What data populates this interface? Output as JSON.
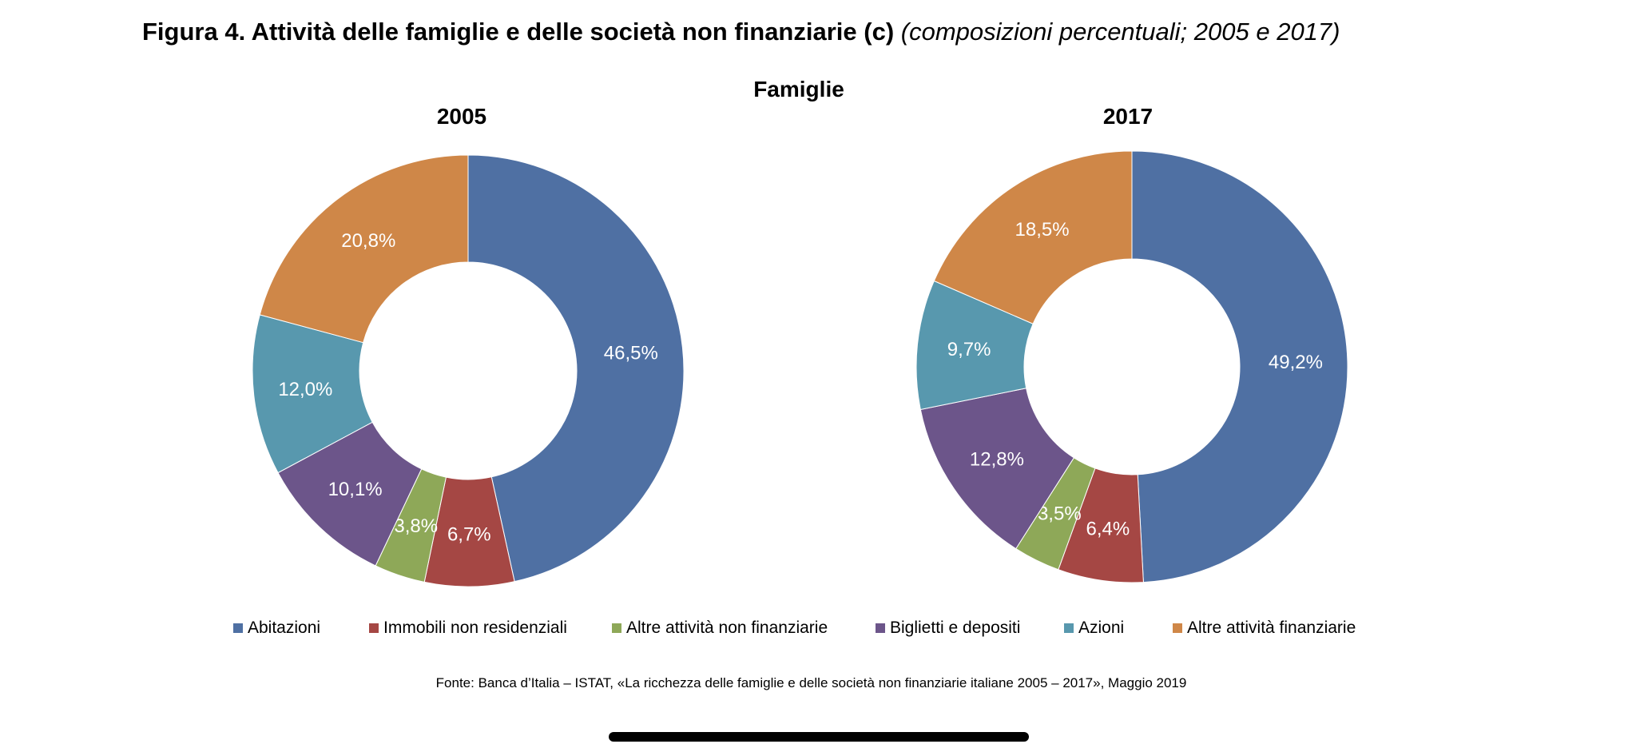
{
  "figure": {
    "title_bold": "Figura 4. Attività delle famiglie e delle società non finanziarie (c)",
    "title_italic": "(composizioni percentuali; 2005 e 2017)",
    "group_title": "Famiglie",
    "source": "Fonte: Banca d’Italia – ISTAT, «La ricchezza delle famiglie e delle società non finanziarie italiane 2005 – 2017», Maggio 2019"
  },
  "legend": [
    {
      "label": "Abitazioni",
      "color": "#4f70a3"
    },
    {
      "label": "Immobili non residenziali",
      "color": "#a54744"
    },
    {
      "label": "Altre attività non finanziarie",
      "color": "#8ea858"
    },
    {
      "label": "Biglietti e depositi",
      "color": "#6c558a"
    },
    {
      "label": "Azioni",
      "color": "#5898ae"
    },
    {
      "label": "Altre attività finanziarie",
      "color": "#cf8748"
    }
  ],
  "chart_data": [
    {
      "type": "pie",
      "title": "2005",
      "categories": [
        "Abitazioni",
        "Immobili non residenziali",
        "Altre attività non finanziarie",
        "Biglietti e depositi",
        "Azioni",
        "Altre attività finanziarie"
      ],
      "values": [
        46.5,
        6.7,
        3.8,
        10.1,
        12.0,
        20.8
      ],
      "labels": [
        "46,5%",
        "6,7%",
        "3,8%",
        "10,1%",
        "12,0%",
        "20,8%"
      ],
      "legend": "bottom"
    },
    {
      "type": "pie",
      "title": "2017",
      "categories": [
        "Abitazioni",
        "Immobili non residenziali",
        "Altre attività non finanziarie",
        "Biglietti e depositi",
        "Azioni",
        "Altre attività finanziarie"
      ],
      "values": [
        49.2,
        6.4,
        3.5,
        12.8,
        9.7,
        18.5
      ],
      "labels": [
        "49,2%",
        "6,4%",
        "3,5%",
        "12,8%",
        "9,7%",
        "18,5%"
      ],
      "legend": "bottom"
    }
  ]
}
